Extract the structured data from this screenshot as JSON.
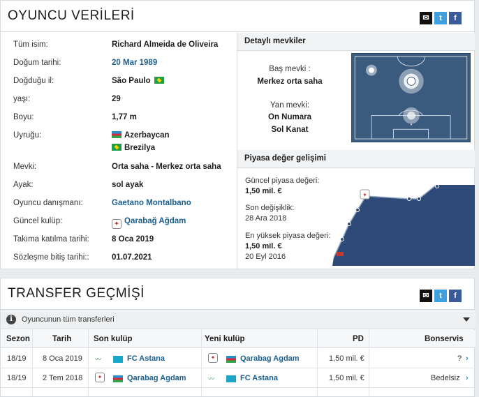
{
  "player_box": {
    "title": "OYUNCU VERİLERİ",
    "share": {
      "mail": "✉",
      "twitter": "t",
      "facebook": "f"
    },
    "rows": [
      {
        "key": "Tüm isim:",
        "value": "Richard Almeida de Oliveira"
      },
      {
        "key": "Doğum tarihi:",
        "value": "20 Mar 1989"
      },
      {
        "key": "Doğduğu il:",
        "value": "São Paulo"
      },
      {
        "key": "yaşı:",
        "value": "29"
      },
      {
        "key": "Boyu:",
        "value": "1,77 m"
      },
      {
        "key": "Uyruğu:",
        "value": "Azerbaycan",
        "value2": "Brezilya"
      },
      {
        "key": "Mevki:",
        "value": "Orta saha - Merkez orta saha"
      },
      {
        "key": "Ayak:",
        "value": "sol ayak"
      },
      {
        "key": "Oyuncu danışmanı:",
        "value": "Gaetano Montalbano"
      },
      {
        "key": "Güncel kulüp:",
        "value": "Qarabağ Ağdam"
      },
      {
        "key": "Takıma katılma tarihi:",
        "value": "8 Oca 2019"
      },
      {
        "key": "Sözleşme bitiş tarihi::",
        "value": "01.07.2021"
      }
    ]
  },
  "positions": {
    "title": "Detaylı mevkiler",
    "main_label": "Baş mevki :",
    "main_value": "Merkez orta saha",
    "side_label": "Yan mevki:",
    "side_values": [
      "On Numara",
      "Sol Kanat"
    ]
  },
  "market_value": {
    "title": "Piyasa değer gelişimi",
    "current_label": "Güncel piyasa değeri:",
    "current_value": "1,50 mil. €",
    "last_change_label": "Son değişiklik:",
    "last_change_value": "28 Ara 2018",
    "highest_label": "En yüksek piyasa değeri:",
    "highest_value": "1,50 mil. €",
    "highest_date": "20 Eyl 2016"
  },
  "transfer_box": {
    "title": "TRANSFER GEÇMİŞİ",
    "all_transfers": "Oyuncunun tüm transferleri",
    "columns": [
      "Sezon",
      "Tarih",
      "Son kulüp",
      "Yeni kulüp",
      "PD",
      "Bonservis"
    ],
    "rows": [
      {
        "season": "18/19",
        "date": "8 Oca 2019",
        "from": "FC Astana",
        "to": "Qarabag Agdam",
        "pd": "1,50 mil. €",
        "fee": "?"
      },
      {
        "season": "18/19",
        "date": "2 Tem 2018",
        "from": "Qarabag Agdam",
        "to": "FC Astana",
        "pd": "1,50 mil. €",
        "fee": "Bedelsiz"
      }
    ]
  },
  "colors": {
    "link": "#1a5f8e",
    "pitch": "#3a5a7e",
    "chart_fill": "#2d4a78"
  }
}
